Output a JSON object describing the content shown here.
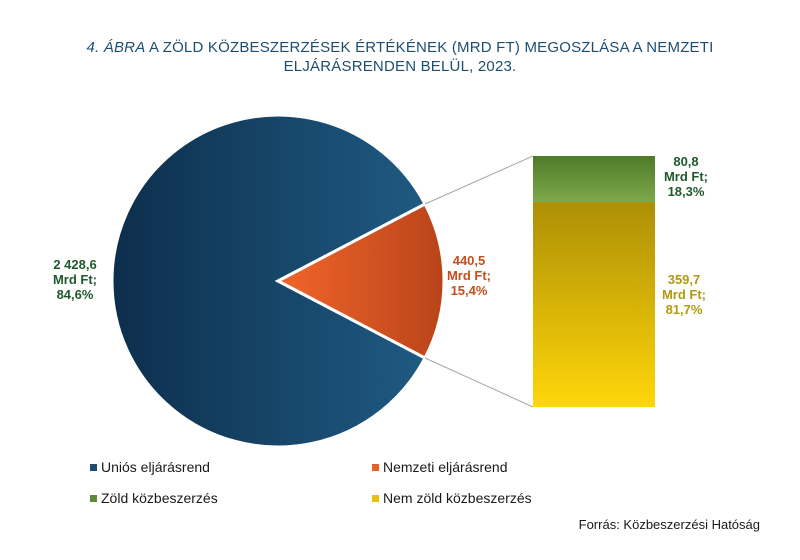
{
  "title": {
    "figure": "4. ÁBRA",
    "text": " A ZÖLD KÖZBESZERZÉSEK ÉRTÉKÉNEK  (MRD FT) MEGOSZLÁSA A NEMZETI ELJÁRÁSRENDEN BELÜL, 2023."
  },
  "source": "Forrás: Közbeszerzési Hatóság",
  "colors": {
    "unios": "#1d4e72",
    "nemzeti": "#e8602a",
    "zold": "#5f8a35",
    "nem_zold": "#e8c20a",
    "label_green": "#1f5a2c",
    "label_orange": "#c44e1c",
    "label_yellow": "#b09a12"
  },
  "chart_data": [
    {
      "type": "pie",
      "title": "",
      "slices": [
        {
          "name": "Uniós eljárásrend",
          "value": 2428.6,
          "percent": 84.6,
          "label_lines": [
            "2 428,6",
            "Mrd Ft;",
            "84,6%"
          ]
        },
        {
          "name": "Nemzeti eljárásrend",
          "value": 440.5,
          "percent": 15.4,
          "label_lines": [
            "440,5",
            "Mrd Ft;",
            "15,4%"
          ]
        }
      ]
    },
    {
      "type": "bar",
      "stacked": true,
      "title": "",
      "series": [
        {
          "name": "Zöld közbeszerzés",
          "value": 80.8,
          "percent": 18.3,
          "label_lines": [
            "80,8",
            "Mrd Ft;",
            "18,3%"
          ]
        },
        {
          "name": "Nem zöld közbeszerzés",
          "value": 359.7,
          "percent": 81.7,
          "label_lines": [
            "359,7",
            "Mrd Ft;",
            "81,7%"
          ]
        }
      ]
    }
  ],
  "legend": [
    {
      "label": "Uniós eljárásrend",
      "color_key": "unios"
    },
    {
      "label": "Nemzeti eljárásrend",
      "color_key": "nemzeti"
    },
    {
      "label": "Zöld közbeszerzés",
      "color_key": "zold"
    },
    {
      "label": "Nem zöld közbeszerzés",
      "color_key": "nem_zold"
    }
  ]
}
